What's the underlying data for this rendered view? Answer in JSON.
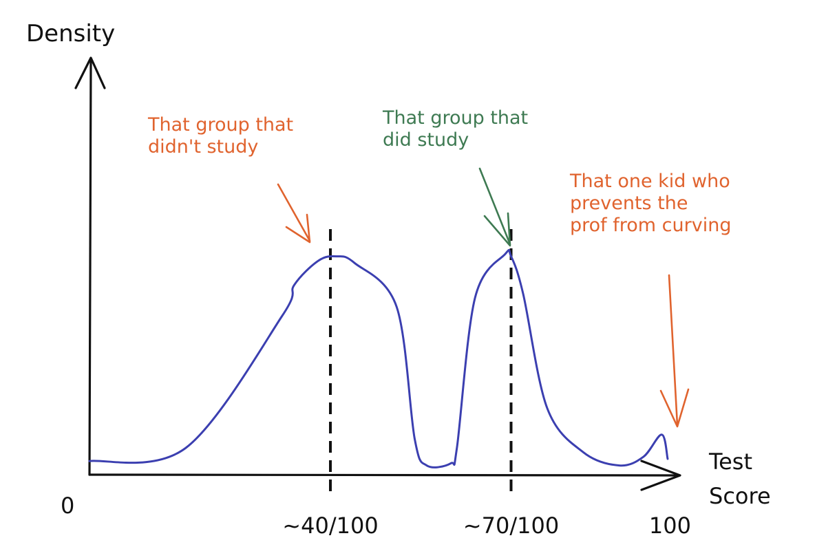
{
  "chart_data": {
    "type": "line",
    "title": "",
    "xlabel": "Test Score",
    "xlabel_lines": [
      "Test",
      "Score"
    ],
    "ylabel": "Density",
    "xlim": [
      0,
      100
    ],
    "grid": false,
    "x_ticks": [
      {
        "x": 0,
        "label": "0"
      },
      {
        "x": 40,
        "label": "~40/100"
      },
      {
        "x": 70,
        "label": "~70/100"
      },
      {
        "x": 100,
        "label": "100"
      }
    ],
    "reference_lines": [
      {
        "x": 40,
        "style": "dashed"
      },
      {
        "x": 70,
        "style": "dashed"
      }
    ],
    "series": [
      {
        "color": "#3b3fb0",
        "x": [
          0,
          16,
          32,
          34,
          38,
          41,
          44,
          51,
          54,
          56,
          60,
          61,
          64,
          69,
          70,
          72,
          76,
          82,
          88,
          92,
          95,
          96
        ],
        "y": [
          0.04,
          0.1,
          0.7,
          0.84,
          0.95,
          0.97,
          0.94,
          0.74,
          0.14,
          0.02,
          0.03,
          0.1,
          0.78,
          0.98,
          0.97,
          0.8,
          0.28,
          0.08,
          0.02,
          0.06,
          0.16,
          0.05
        ]
      }
    ],
    "annotations": [
      {
        "lines": [
          "That group that",
          "didn't study"
        ],
        "color": "#e0632e",
        "points_to_x": 40
      },
      {
        "lines": [
          "That group that",
          "did study"
        ],
        "color": "#3e7a52",
        "points_to_x": 70
      },
      {
        "lines": [
          "That one kid who",
          "prevents the",
          "prof from curving"
        ],
        "color": "#e0632e",
        "points_to_x": 95
      }
    ]
  }
}
